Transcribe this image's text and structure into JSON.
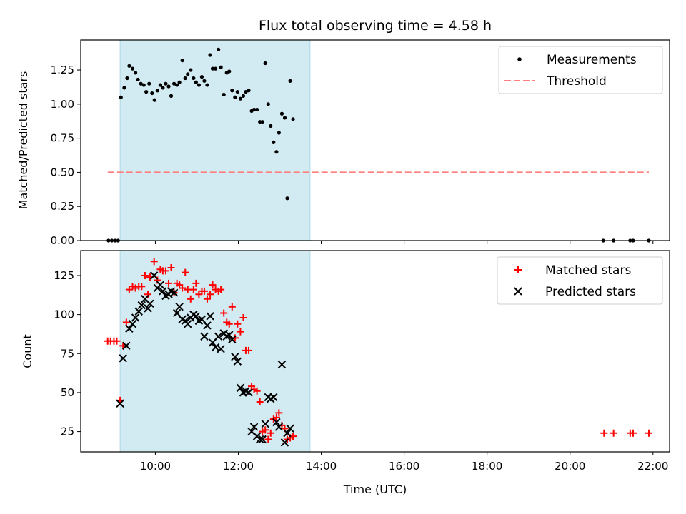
{
  "title": "Flux total observing time = 4.58 h",
  "chart_data": [
    {
      "type": "scatter",
      "panel": "top",
      "title": "Flux total observing time = 4.58 h",
      "xlabel": "",
      "ylabel": "Matched/Predicted stars",
      "xlim": [
        8.2,
        22.4
      ],
      "ylim": [
        0,
        1.47
      ],
      "x_axis": "time (hours UTC)",
      "yticks": [
        0.0,
        0.25,
        0.5,
        0.75,
        1.0,
        1.25
      ],
      "ytick_labels": [
        "0.00",
        "0.25",
        "0.50",
        "0.75",
        "1.00",
        "1.25"
      ],
      "shaded_region": {
        "x": [
          9.15,
          13.73
        ],
        "color": "#add8e6"
      },
      "legend": {
        "position": "top-right",
        "entries": [
          "Measurements",
          "Threshold"
        ]
      },
      "series": [
        {
          "name": "Measurements",
          "marker": "dot",
          "color": "#000000",
          "points": [
            [
              8.87,
              0.0
            ],
            [
              8.95,
              0.0
            ],
            [
              9.03,
              0.0
            ],
            [
              9.1,
              0.0
            ],
            [
              9.17,
              1.05
            ],
            [
              9.25,
              1.12
            ],
            [
              9.32,
              1.19
            ],
            [
              9.37,
              1.28
            ],
            [
              9.45,
              1.26
            ],
            [
              9.52,
              1.23
            ],
            [
              9.58,
              1.18
            ],
            [
              9.65,
              1.15
            ],
            [
              9.72,
              1.14
            ],
            [
              9.78,
              1.09
            ],
            [
              9.85,
              1.15
            ],
            [
              9.92,
              1.08
            ],
            [
              9.98,
              1.03
            ],
            [
              10.05,
              1.1
            ],
            [
              10.12,
              1.14
            ],
            [
              10.18,
              1.12
            ],
            [
              10.25,
              1.15
            ],
            [
              10.32,
              1.13
            ],
            [
              10.38,
              1.06
            ],
            [
              10.45,
              1.15
            ],
            [
              10.52,
              1.14
            ],
            [
              10.58,
              1.16
            ],
            [
              10.65,
              1.32
            ],
            [
              10.72,
              1.19
            ],
            [
              10.78,
              1.22
            ],
            [
              10.85,
              1.25
            ],
            [
              10.92,
              1.19
            ],
            [
              10.98,
              1.16
            ],
            [
              11.05,
              1.14
            ],
            [
              11.12,
              1.2
            ],
            [
              11.18,
              1.17
            ],
            [
              11.25,
              1.14
            ],
            [
              11.32,
              1.36
            ],
            [
              11.38,
              1.26
            ],
            [
              11.45,
              1.26
            ],
            [
              11.52,
              1.4
            ],
            [
              11.58,
              1.27
            ],
            [
              11.65,
              1.07
            ],
            [
              11.72,
              1.23
            ],
            [
              11.78,
              1.24
            ],
            [
              11.85,
              1.1
            ],
            [
              11.92,
              1.05
            ],
            [
              11.98,
              1.09
            ],
            [
              12.05,
              1.04
            ],
            [
              12.12,
              1.06
            ],
            [
              12.18,
              1.09
            ],
            [
              12.25,
              1.1
            ],
            [
              12.32,
              0.95
            ],
            [
              12.38,
              0.96
            ],
            [
              12.45,
              0.96
            ],
            [
              12.52,
              0.87
            ],
            [
              12.58,
              0.87
            ],
            [
              12.65,
              1.3
            ],
            [
              12.72,
              1.0
            ],
            [
              12.78,
              0.84
            ],
            [
              12.85,
              0.72
            ],
            [
              12.92,
              0.65
            ],
            [
              12.98,
              0.79
            ],
            [
              13.05,
              0.93
            ],
            [
              13.12,
              0.9
            ],
            [
              13.18,
              0.31
            ],
            [
              13.25,
              1.17
            ],
            [
              13.32,
              0.89
            ],
            [
              20.8,
              0.0
            ],
            [
              21.05,
              0.0
            ],
            [
              21.45,
              0.0
            ],
            [
              21.52,
              0.0
            ],
            [
              21.9,
              0.0
            ]
          ]
        },
        {
          "name": "Threshold",
          "style": "dashed",
          "color": "#ff7f7f",
          "x": [
            8.85,
            21.9
          ],
          "y": [
            0.5,
            0.5
          ]
        }
      ]
    },
    {
      "type": "scatter",
      "panel": "bottom",
      "xlabel": "Time (UTC)",
      "ylabel": "Count",
      "xlim": [
        8.2,
        22.4
      ],
      "ylim": [
        12,
        141
      ],
      "xticks": [
        10,
        12,
        14,
        16,
        18,
        20,
        22
      ],
      "xtick_labels": [
        "10:00",
        "12:00",
        "14:00",
        "16:00",
        "18:00",
        "20:00",
        "22:00"
      ],
      "yticks": [
        25,
        50,
        75,
        100,
        125
      ],
      "ytick_labels": [
        "25",
        "50",
        "75",
        "100",
        "125"
      ],
      "shaded_region": {
        "x": [
          9.15,
          13.73
        ],
        "color": "#add8e6"
      },
      "legend": {
        "position": "top-right",
        "entries": [
          "Matched stars",
          "Predicted stars"
        ]
      },
      "series": [
        {
          "name": "Matched stars",
          "marker": "plus",
          "color": "#ff0000",
          "points": [
            [
              8.85,
              83
            ],
            [
              8.92,
              83
            ],
            [
              9.0,
              83
            ],
            [
              9.07,
              83
            ],
            [
              9.15,
              45
            ],
            [
              9.22,
              80
            ],
            [
              9.3,
              95
            ],
            [
              9.37,
              116
            ],
            [
              9.45,
              118
            ],
            [
              9.52,
              117
            ],
            [
              9.6,
              118
            ],
            [
              9.67,
              118
            ],
            [
              9.75,
              125
            ],
            [
              9.82,
              113
            ],
            [
              9.87,
              124
            ],
            [
              9.97,
              134
            ],
            [
              10.05,
              122
            ],
            [
              10.12,
              129
            ],
            [
              10.18,
              128
            ],
            [
              10.25,
              128
            ],
            [
              10.32,
              120
            ],
            [
              10.38,
              130
            ],
            [
              10.45,
              114
            ],
            [
              10.52,
              120
            ],
            [
              10.58,
              119
            ],
            [
              10.65,
              117
            ],
            [
              10.72,
              127
            ],
            [
              10.78,
              116
            ],
            [
              10.85,
              110
            ],
            [
              10.92,
              116
            ],
            [
              10.98,
              120
            ],
            [
              11.05,
              113
            ],
            [
              11.12,
              115
            ],
            [
              11.18,
              115
            ],
            [
              11.25,
              110
            ],
            [
              11.32,
              113
            ],
            [
              11.38,
              119
            ],
            [
              11.45,
              116
            ],
            [
              11.52,
              115
            ],
            [
              11.58,
              116
            ],
            [
              11.65,
              101
            ],
            [
              11.72,
              95
            ],
            [
              11.78,
              94
            ],
            [
              11.85,
              105
            ],
            [
              11.92,
              85
            ],
            [
              11.98,
              94
            ],
            [
              12.05,
              89
            ],
            [
              12.12,
              98
            ],
            [
              12.18,
              77
            ],
            [
              12.25,
              77
            ],
            [
              12.32,
              54
            ],
            [
              12.38,
              52
            ],
            [
              12.45,
              51
            ],
            [
              12.52,
              44
            ],
            [
              12.58,
              25
            ],
            [
              12.65,
              26
            ],
            [
              12.72,
              20
            ],
            [
              12.78,
              24
            ],
            [
              12.85,
              33
            ],
            [
              12.92,
              34
            ],
            [
              12.98,
              37
            ],
            [
              13.05,
              29
            ],
            [
              13.12,
              27
            ],
            [
              13.18,
              20
            ],
            [
              13.25,
              21
            ],
            [
              13.32,
              22
            ],
            [
              20.82,
              24
            ],
            [
              21.05,
              24
            ],
            [
              21.45,
              24
            ],
            [
              21.52,
              24
            ],
            [
              21.9,
              24
            ]
          ]
        },
        {
          "name": "Predicted stars",
          "marker": "x",
          "color": "#000000",
          "points": [
            [
              9.15,
              43
            ],
            [
              9.22,
              72
            ],
            [
              9.3,
              80
            ],
            [
              9.37,
              91
            ],
            [
              9.45,
              94
            ],
            [
              9.52,
              98
            ],
            [
              9.6,
              102
            ],
            [
              9.67,
              106
            ],
            [
              9.75,
              110
            ],
            [
              9.82,
              104
            ],
            [
              9.87,
              107
            ],
            [
              9.97,
              125
            ],
            [
              10.05,
              117
            ],
            [
              10.12,
              119
            ],
            [
              10.18,
              115
            ],
            [
              10.25,
              112
            ],
            [
              10.32,
              113
            ],
            [
              10.38,
              115
            ],
            [
              10.45,
              114
            ],
            [
              10.52,
              101
            ],
            [
              10.58,
              105
            ],
            [
              10.65,
              97
            ],
            [
              10.72,
              96
            ],
            [
              10.78,
              94
            ],
            [
              10.85,
              98
            ],
            [
              10.92,
              100
            ],
            [
              10.98,
              99
            ],
            [
              11.05,
              96
            ],
            [
              11.12,
              97
            ],
            [
              11.18,
              86
            ],
            [
              11.25,
              93
            ],
            [
              11.32,
              99
            ],
            [
              11.38,
              82
            ],
            [
              11.45,
              79
            ],
            [
              11.52,
              86
            ],
            [
              11.58,
              78
            ],
            [
              11.65,
              88
            ],
            [
              11.72,
              86
            ],
            [
              11.78,
              87
            ],
            [
              11.85,
              84
            ],
            [
              11.92,
              73
            ],
            [
              11.98,
              70
            ],
            [
              12.05,
              53
            ],
            [
              12.12,
              50
            ],
            [
              12.18,
              51
            ],
            [
              12.25,
              50
            ],
            [
              12.32,
              25
            ],
            [
              12.38,
              28
            ],
            [
              12.45,
              22
            ],
            [
              12.52,
              20
            ],
            [
              12.58,
              20
            ],
            [
              12.65,
              30
            ],
            [
              12.72,
              47
            ],
            [
              12.78,
              46
            ],
            [
              12.85,
              47
            ],
            [
              12.92,
              31
            ],
            [
              12.98,
              28
            ],
            [
              13.05,
              68
            ],
            [
              13.12,
              18
            ],
            [
              13.18,
              24
            ],
            [
              13.25,
              27
            ]
          ]
        }
      ]
    }
  ]
}
